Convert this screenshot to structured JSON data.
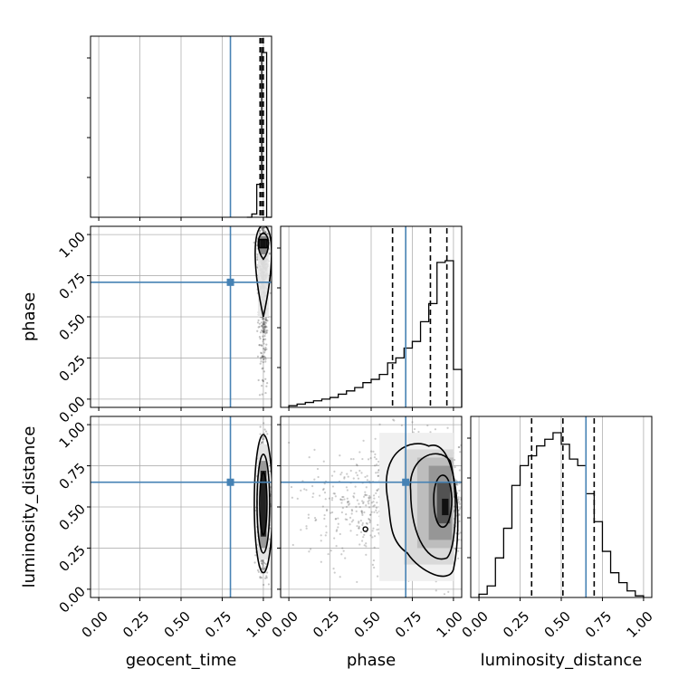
{
  "chart_data": {
    "type": "corner",
    "parameters": [
      "geocent_time",
      "phase",
      "luminosity_distance"
    ],
    "tick_labels": [
      "0.00",
      "0.25",
      "0.50",
      "0.75",
      "1.00"
    ],
    "axis_range": [
      -0.05,
      1.05
    ],
    "grid": true,
    "truths": {
      "geocent_time": 0.8,
      "phase": 0.71,
      "luminosity_distance": 0.65
    },
    "colors": {
      "truth": "#4682b4",
      "hist": "#000000",
      "contour": "#000000",
      "points": "#555555"
    },
    "histograms": [
      {
        "param": "geocent_time",
        "bin_edges": [
          0.9,
          0.93,
          0.96,
          0.99,
          1.02,
          1.05
        ],
        "values": [
          0.0,
          0.02,
          0.2,
          1.0,
          0.0
        ],
        "quantiles": [
          0.98,
          0.99,
          1.0
        ]
      },
      {
        "param": "phase",
        "bin_edges": [
          0.0,
          0.05,
          0.1,
          0.15,
          0.2,
          0.25,
          0.3,
          0.35,
          0.4,
          0.45,
          0.5,
          0.55,
          0.6,
          0.65,
          0.7,
          0.75,
          0.8,
          0.85,
          0.9,
          0.95,
          1.0,
          1.05
        ],
        "values": [
          0.01,
          0.02,
          0.03,
          0.04,
          0.05,
          0.06,
          0.08,
          0.1,
          0.12,
          0.15,
          0.17,
          0.2,
          0.27,
          0.3,
          0.36,
          0.4,
          0.52,
          0.63,
          0.88,
          0.89,
          0.23
        ],
        "quantiles": [
          0.63,
          0.86,
          0.96
        ]
      },
      {
        "param": "luminosity_distance",
        "bin_edges": [
          0.0,
          0.05,
          0.1,
          0.15,
          0.2,
          0.25,
          0.3,
          0.35,
          0.4,
          0.45,
          0.5,
          0.55,
          0.6,
          0.65,
          0.7,
          0.75,
          0.8,
          0.85,
          0.9,
          0.95,
          1.0
        ],
        "values": [
          0.02,
          0.07,
          0.24,
          0.42,
          0.68,
          0.8,
          0.86,
          0.92,
          0.96,
          1.0,
          0.93,
          0.84,
          0.8,
          0.63,
          0.46,
          0.28,
          0.15,
          0.09,
          0.04,
          0.01
        ],
        "quantiles": [
          0.32,
          0.51,
          0.7
        ]
      }
    ],
    "pairs": [
      {
        "x": "geocent_time",
        "y": "phase",
        "x_center": 1.0,
        "x_spread": 0.014,
        "y_mode": 0.95
      },
      {
        "x": "geocent_time",
        "y": "luminosity_distance",
        "x_center": 1.0,
        "x_spread": 0.016,
        "y_center": 0.52,
        "y_spread": 0.17
      },
      {
        "x": "phase",
        "y": "luminosity_distance",
        "x_mode": 0.95,
        "y_center": 0.52,
        "y_spread": 0.17
      }
    ]
  }
}
